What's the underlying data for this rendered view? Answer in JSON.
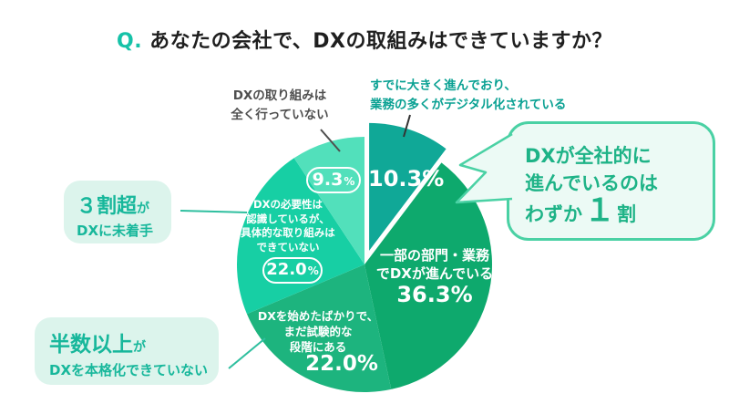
{
  "title": {
    "prefix": "Q.",
    "text": "あなたの会社で、DXの取組みはできていますか？"
  },
  "chart_data": {
    "type": "pie",
    "title": "あなたの会社で、DXの取組みはできていますか？",
    "unit": "%",
    "start_angle_deg": 0,
    "clockwise": true,
    "legend": "none",
    "slices": [
      {
        "label": "すでに大きく進んでおり、業務の多くがデジタル化されている",
        "value": 10.3,
        "pct_label": "10.3%",
        "color": "#10a897",
        "exploded": true
      },
      {
        "label": "一部の部門・業務でDXが進んでいる",
        "value": 36.3,
        "pct_label": "36.3%",
        "color": "#0ea96d",
        "exploded": false
      },
      {
        "label": "DXを始めたばかりで、まだ試験的な段階にある",
        "value": 22.0,
        "pct_label": "22.0%",
        "color": "#1db47e",
        "exploded": false
      },
      {
        "label": "DXの必要性は認識しているが、具体的な取り組みはできていない",
        "value": 22.0,
        "pct_label": "22.0%",
        "pct_num": "22.0",
        "pct_sym": "%",
        "color": "#17cfa4",
        "exploded": false
      },
      {
        "label": "DXの取り組みは全く行っていない",
        "value": 9.3,
        "pct_label": "9.3%",
        "pct_num": "9.3",
        "pct_sym": "%",
        "color": "#52e0bb",
        "exploded": false
      }
    ]
  },
  "pie_texts": {
    "desc_1": "一部の部門・業務\nでDXが進んでいる",
    "desc_2": "DXを始めたばかりで、\nまだ試験的な\n段階にある",
    "desc_3": "DXの必要性は\n認識しているが、\n具体的な取り組みは\nできていない"
  },
  "annotations": {
    "top_right": "すでに大きく進んでおり、\n業務の多くがデジタル化されている",
    "top_left": "DXの取り組みは\n全く行っていない"
  },
  "callouts": {
    "left_box": {
      "big": "３割超",
      "small": "が",
      "line2": "DXに未着手"
    },
    "bottom_box": {
      "big": "半数以上",
      "small": "が",
      "line2": "DXを本格化できていない"
    },
    "bubble": {
      "line1": "DXが全社的に",
      "line2": "進んでいるのは",
      "line3_pre": "わずか",
      "line3_big": "１",
      "line3_post": "割"
    }
  },
  "colors": {
    "accent": "#16c2a8",
    "callout_bg": "#dcf4ec",
    "callout_text": "#17b79b",
    "bubble_border": "#4ad1a4",
    "bubble_bg": "#ecfaf5",
    "bubble_text": "#1eb387",
    "annotation_green": "#0aa193",
    "annotation_gray": "#4f4f4f"
  }
}
